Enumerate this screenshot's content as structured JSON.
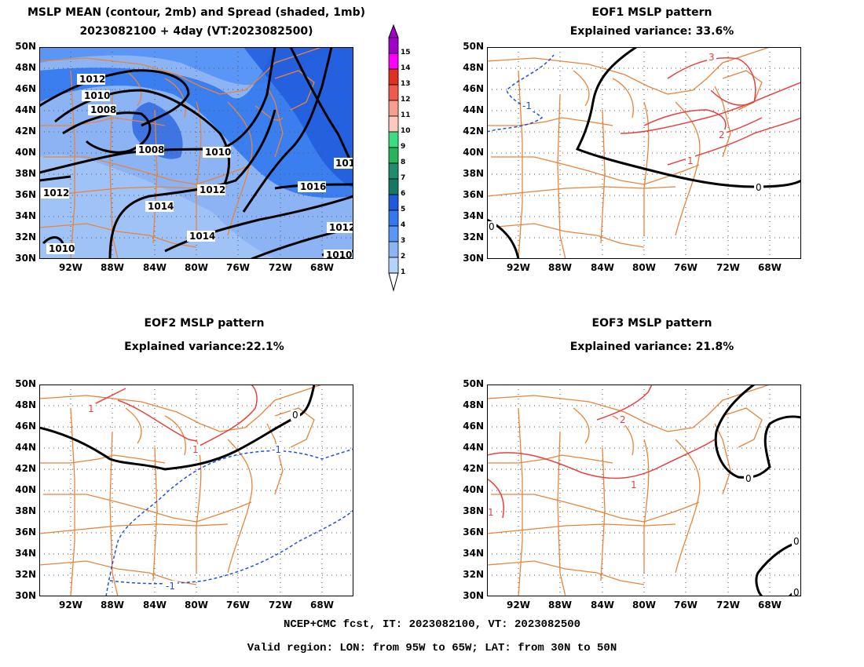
{
  "panels": {
    "p1": {
      "title_line1": "MSLP MEAN (contour, 2mb) and Spread (shaded, 1mb)",
      "title_line2": "2023082100 + 4day (VT:2023082500)",
      "contour_labels": [
        "1012",
        "1010",
        "1008",
        "1008",
        "1010",
        "1012",
        "1014",
        "1014",
        "1016",
        "1012",
        "1010",
        "1010",
        "101",
        "1012"
      ]
    },
    "p2": {
      "title_line1": "EOF1 MSLP pattern",
      "title_line2": "Explained variance: 33.6%",
      "contour_labels": [
        "3",
        "2",
        "1",
        "-1",
        "0",
        "0"
      ]
    },
    "p3": {
      "title_line1": "EOF2 MSLP pattern",
      "title_line2": "Explained variance:22.1%",
      "contour_labels": [
        "1",
        "1",
        "0",
        "-1",
        "-1"
      ]
    },
    "p4": {
      "title_line1": "EOF3 MSLP pattern",
      "title_line2": "Explained variance: 21.8%",
      "contour_labels": [
        "2",
        "1",
        "1",
        "0",
        "0",
        "0"
      ]
    }
  },
  "axes": {
    "lat_labels": [
      "50N",
      "48N",
      "46N",
      "44N",
      "42N",
      "40N",
      "38N",
      "36N",
      "34N",
      "32N",
      "30N"
    ],
    "lon_labels": [
      "92W",
      "88W",
      "84W",
      "80W",
      "76W",
      "72W",
      "68W"
    ]
  },
  "colorbar": {
    "levels": [
      "15",
      "14",
      "13",
      "12",
      "11",
      "10",
      "9",
      "8",
      "7",
      "6",
      "5",
      "4",
      "3",
      "2",
      "1"
    ],
    "colors": [
      "#a000c8",
      "#ff00ff",
      "#e0301e",
      "#f05a4b",
      "#f89e8e",
      "#fcc8c0",
      "#3cdc82",
      "#28b45a",
      "#1e8c6e",
      "#147864",
      "#1e5adc",
      "#3278f0",
      "#5a96f5",
      "#8cb4f5",
      "#b4d2fa"
    ]
  },
  "footer": {
    "line1": "NCEP+CMC fcst, IT: 2023082100, VT: 2023082500",
    "line2": "Valid region: LON: from 95W to 65W; LAT: from 30N to 50N"
  }
}
